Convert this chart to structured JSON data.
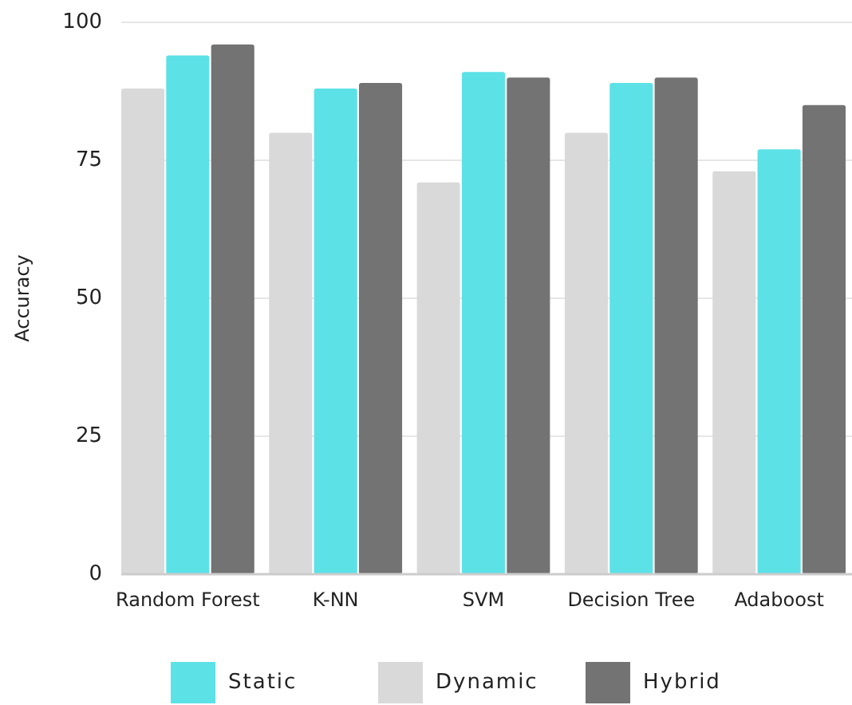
{
  "chart_data": {
    "type": "bar",
    "ylabel": "Accuracy",
    "categories": [
      "Random Forest",
      "K-NN",
      "SVM",
      "Decision Tree",
      "Adaboost"
    ],
    "series": [
      {
        "name": "Dynamic",
        "color": "#d9d9d9",
        "values": [
          88,
          80,
          71,
          80,
          73
        ]
      },
      {
        "name": "Static",
        "color": "#5ce1e6",
        "values": [
          94,
          88,
          91,
          89,
          77
        ]
      },
      {
        "name": "Hybrid",
        "color": "#737373",
        "values": [
          96,
          89,
          90,
          90,
          85
        ]
      }
    ],
    "ylim": [
      0,
      100
    ],
    "yticks": [
      0,
      25,
      50,
      75,
      100
    ],
    "grid": "y",
    "legend": "bottom"
  }
}
